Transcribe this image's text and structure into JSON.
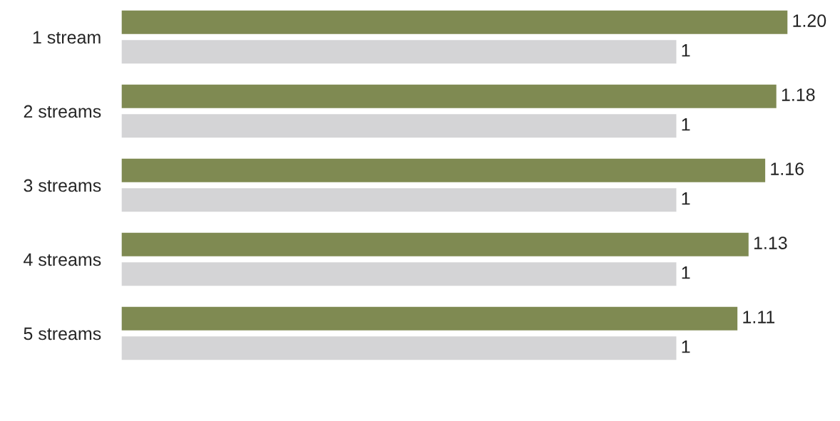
{
  "chart_data": {
    "type": "bar",
    "orientation": "horizontal",
    "categories": [
      "1 stream",
      "2 streams",
      "3 streams",
      "4 streams",
      "5 streams"
    ],
    "series": [
      {
        "color": "#7f8a52",
        "values": [
          1.2,
          1.18,
          1.16,
          1.13,
          1.11
        ],
        "value_labels": [
          "1.20",
          "1.18",
          "1.16",
          "1.13",
          "1.11"
        ]
      },
      {
        "color": "#d4d4d6",
        "values": [
          1,
          1,
          1,
          1,
          1
        ],
        "value_labels": [
          "1",
          "1",
          "1",
          "1",
          "1"
        ]
      }
    ],
    "tick_labels": "y"
  }
}
